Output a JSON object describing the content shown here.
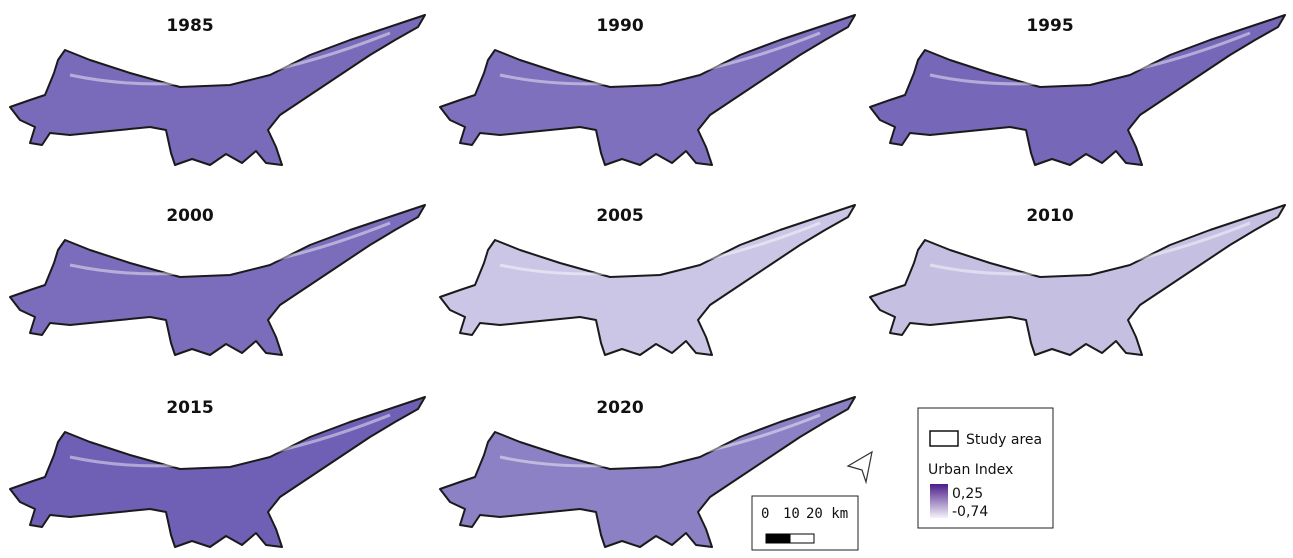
{
  "panels": [
    {
      "title": "1985",
      "fill": "#7a6bba"
    },
    {
      "title": "1990",
      "fill": "#7e70bd"
    },
    {
      "title": "1995",
      "fill": "#7767b8"
    },
    {
      "title": "2000",
      "fill": "#7b6dbb"
    },
    {
      "title": "2005",
      "fill": "#cbc6e5"
    },
    {
      "title": "2010",
      "fill": "#c5c0e2"
    },
    {
      "title": "2015",
      "fill": "#7060b5"
    },
    {
      "title": "2020",
      "fill": "#8c81c4"
    }
  ],
  "legend": {
    "study_area": "Study area",
    "index_title": "Urban Index",
    "max": "0,25",
    "min": "-0,74",
    "ramp": [
      "#4a1d8a",
      "#f4f2f9"
    ]
  },
  "scale_bar": {
    "labels": [
      "0",
      "10",
      "20 km"
    ]
  }
}
